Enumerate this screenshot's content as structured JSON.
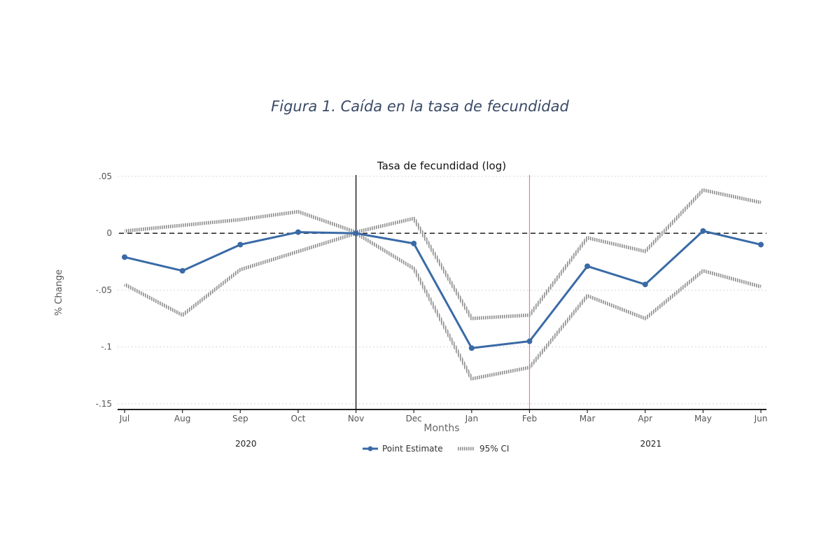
{
  "figure_caption": "Figura 1. Caída en la tasa de fecundidad",
  "chart_data": {
    "type": "line",
    "title": "Tasa de fecundidad (log)",
    "xlabel": "Months",
    "ylabel": "% Change",
    "categories": [
      "Jul",
      "Aug",
      "Sep",
      "Oct",
      "Nov",
      "Dec",
      "Jan",
      "Feb",
      "Mar",
      "Apr",
      "May",
      "Jun"
    ],
    "year_labels": [
      {
        "label": "2020",
        "center_category": "Sep"
      },
      {
        "label": "2021",
        "center_category": "Apr"
      }
    ],
    "ylim": [
      -0.155,
      0.05
    ],
    "yticks": [
      0.05,
      0,
      -0.05,
      -0.1,
      -0.15
    ],
    "ytick_labels": [
      ".05",
      "0",
      "-.05",
      "-.1",
      "-.15"
    ],
    "series": [
      {
        "name": "Point Estimate",
        "color": "#3a6aa6",
        "values": [
          -0.021,
          -0.033,
          -0.01,
          0.001,
          0.0,
          -0.009,
          -0.101,
          -0.095,
          -0.029,
          -0.045,
          0.002,
          -0.01
        ]
      },
      {
        "name": "95% CI",
        "color": "#9a9a9a",
        "role": "ci_upper",
        "values": [
          0.002,
          0.007,
          0.012,
          0.019,
          0.001,
          0.013,
          -0.075,
          -0.072,
          -0.004,
          -0.016,
          0.038,
          0.027
        ]
      },
      {
        "name": "",
        "color": "#9a9a9a",
        "role": "ci_lower",
        "values": [
          -0.045,
          -0.072,
          -0.032,
          -0.016,
          0.0,
          -0.031,
          -0.128,
          -0.118,
          -0.055,
          -0.075,
          -0.033,
          -0.047
        ]
      }
    ],
    "reference_lines": [
      {
        "axis": "y",
        "value": 0,
        "style": "dashed",
        "color": "#222222"
      },
      {
        "axis": "x",
        "category": "Nov",
        "style": "solid",
        "color": "#222222"
      },
      {
        "axis": "x",
        "category": "Feb",
        "style": "solid",
        "color": "#e07c9a"
      }
    ],
    "grid": true,
    "legend": {
      "placement": "bottom-center",
      "entries": [
        "Point Estimate",
        "95% CI"
      ]
    }
  }
}
